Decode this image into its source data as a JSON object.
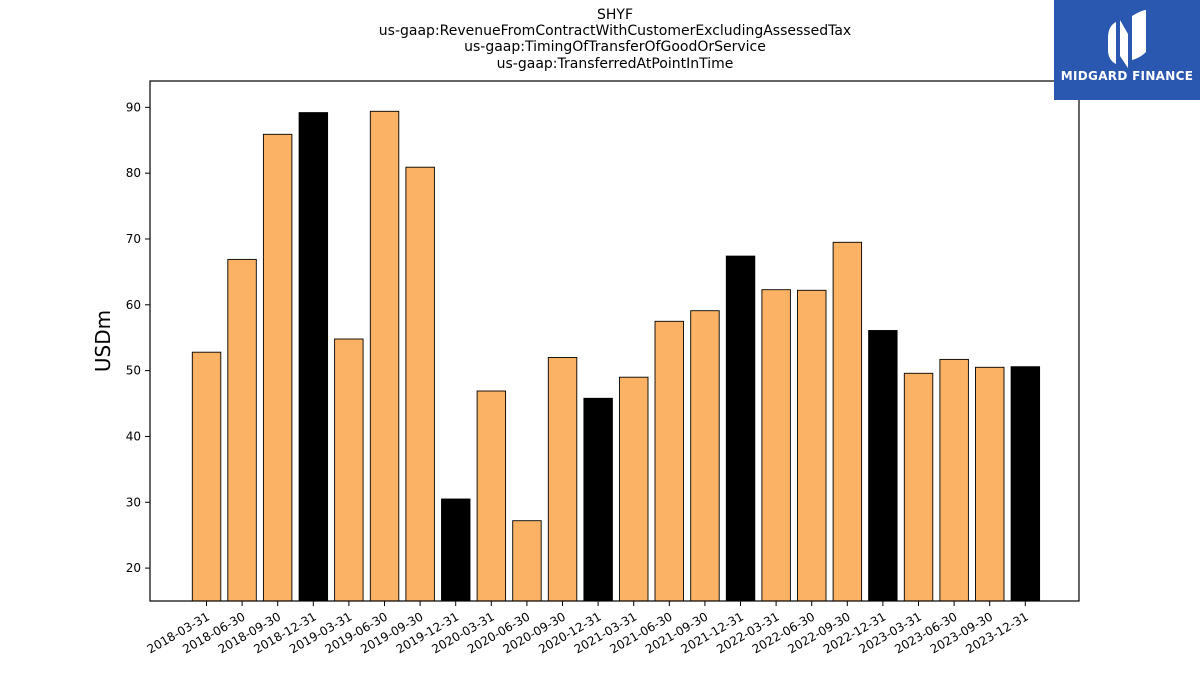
{
  "titles": {
    "line1": "SHYF",
    "line2": "us-gaap:RevenueFromContractWithCustomerExcludingAssessedTax",
    "line3": "us-gaap:TimingOfTransferOfGoodOrService",
    "line4": "us-gaap:TransferredAtPointInTime"
  },
  "logo": {
    "text": "MIDGARD FINANCE",
    "bg_color": "#2a57b0"
  },
  "colors": {
    "regular": "#fbb264",
    "year_end": "#000000"
  },
  "chart_data": {
    "type": "bar",
    "title": "SHYF\nus-gaap:RevenueFromContractWithCustomerExcludingAssessedTax\nus-gaap:TimingOfTransferOfGoodOrService\nus-gaap:TransferredAtPointInTime",
    "xlabel": "",
    "ylabel": "USDm",
    "ylim": [
      15,
      94
    ],
    "yticks": [
      20,
      30,
      40,
      50,
      60,
      70,
      80,
      90
    ],
    "grid": false,
    "categories": [
      "2018-03-31",
      "2018-06-30",
      "2018-09-30",
      "2018-12-31",
      "2019-03-31",
      "2019-06-30",
      "2019-09-30",
      "2019-12-31",
      "2020-03-31",
      "2020-06-30",
      "2020-09-30",
      "2020-12-31",
      "2021-03-31",
      "2021-06-30",
      "2021-09-30",
      "2021-12-31",
      "2022-03-31",
      "2022-06-30",
      "2022-09-30",
      "2022-12-31",
      "2023-03-31",
      "2023-06-30",
      "2023-09-30",
      "2023-12-31"
    ],
    "values": [
      52.8,
      66.9,
      85.9,
      89.2,
      54.8,
      89.4,
      80.9,
      30.5,
      46.9,
      27.2,
      52.0,
      45.8,
      49.0,
      57.5,
      59.1,
      67.4,
      62.3,
      62.2,
      69.5,
      56.1,
      49.6,
      51.7,
      50.5,
      50.6
    ],
    "year_end": [
      false,
      false,
      false,
      true,
      false,
      false,
      false,
      true,
      false,
      false,
      false,
      true,
      false,
      false,
      false,
      true,
      false,
      false,
      false,
      true,
      false,
      false,
      false,
      true
    ]
  }
}
